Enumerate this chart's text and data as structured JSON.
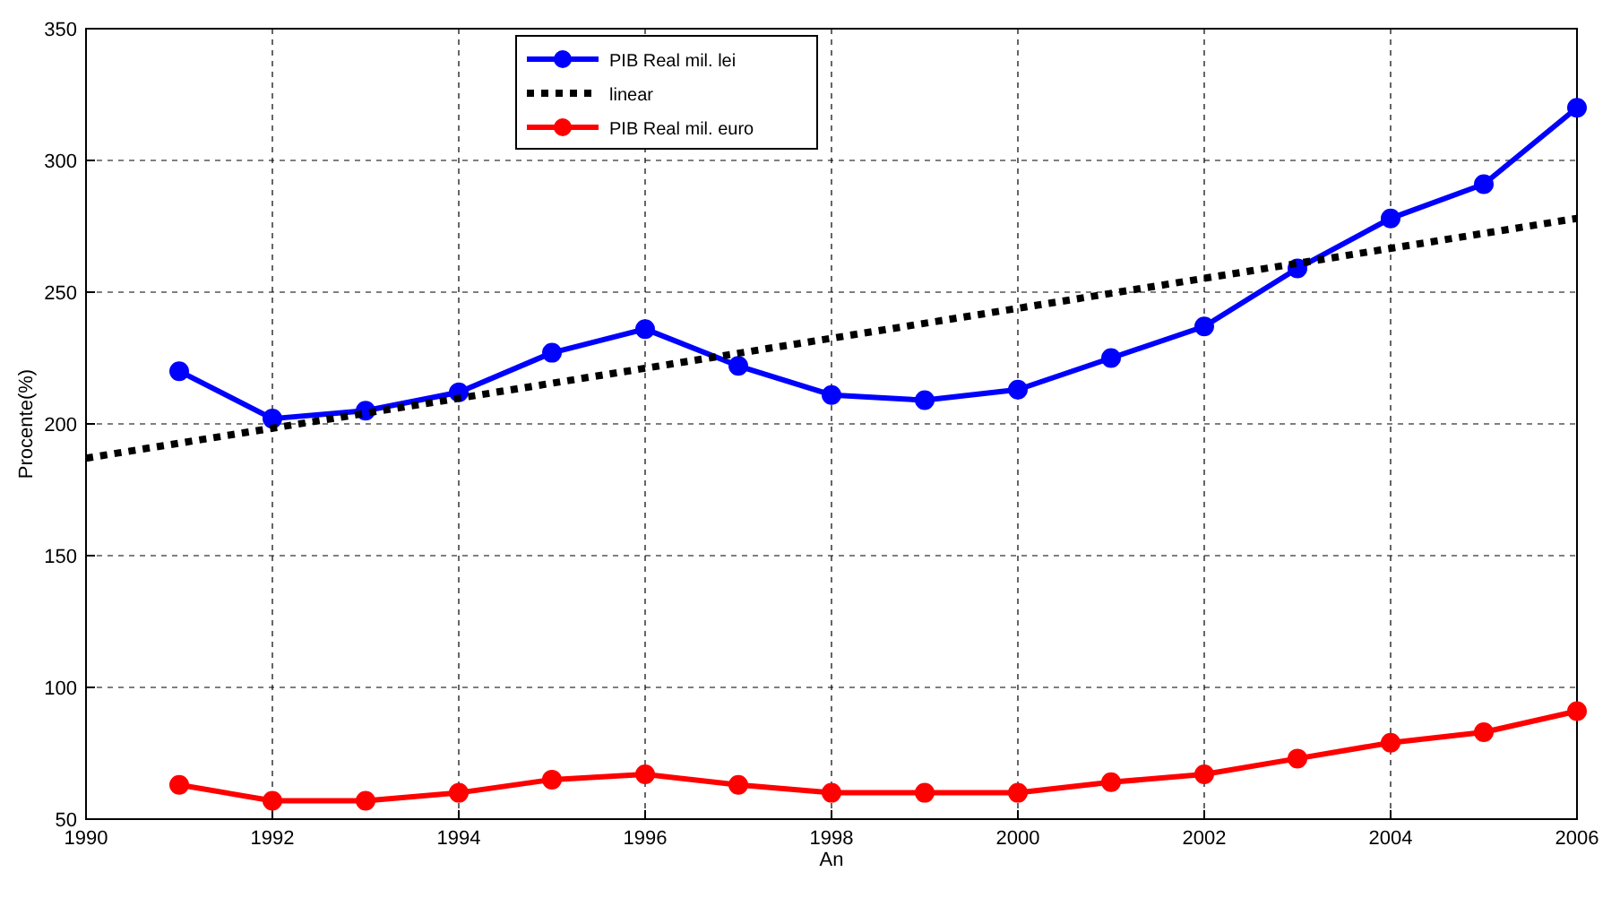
{
  "chart_data": {
    "type": "line",
    "xlabel": "An",
    "ylabel": "Procente(%)",
    "x": [
      1991,
      1992,
      1993,
      1994,
      1995,
      1996,
      1997,
      1998,
      1999,
      2000,
      2001,
      2002,
      2003,
      2004,
      2005,
      2006
    ],
    "series": [
      {
        "name": "PIB Real mil. lei",
        "color": "#0000ff",
        "values": [
          220,
          202,
          205,
          212,
          227,
          236,
          222,
          211,
          209,
          213,
          225,
          237,
          259,
          278,
          291,
          320
        ]
      },
      {
        "name": "linear",
        "color": "#000000",
        "x": [
          1990,
          2006
        ],
        "values": [
          187,
          278
        ],
        "marker": "none",
        "line_style": "dotted"
      },
      {
        "name": "PIB Real mil. euro",
        "color": "#ff0000",
        "values": [
          63,
          57,
          57,
          60,
          65,
          67,
          63,
          60,
          60,
          60,
          64,
          67,
          73,
          79,
          83,
          91
        ]
      }
    ],
    "xlim": [
      1990,
      2006
    ],
    "xticks": [
      1990,
      1992,
      1994,
      1996,
      1998,
      2000,
      2002,
      2004,
      2006
    ],
    "ylim": [
      50,
      350
    ],
    "yticks": [
      50,
      100,
      150,
      200,
      250,
      300,
      350
    ],
    "grid": true,
    "legend": "top",
    "marker": "circle",
    "line_style": "solid"
  }
}
